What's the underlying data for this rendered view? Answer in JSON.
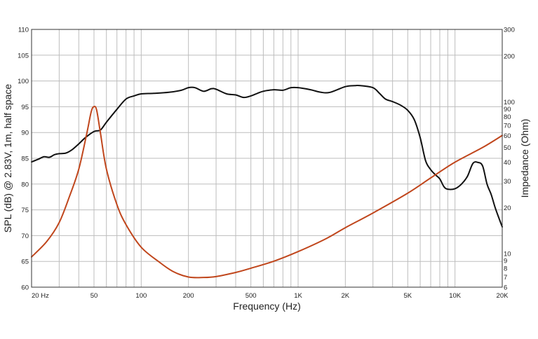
{
  "chart_data": {
    "type": "line",
    "title": "",
    "xlabel": "Frequency (Hz)",
    "ylabel": "SPL (dB) @ 2.83V, 1m, half space",
    "y2label": "Impedance (Ohm)",
    "x_scale": "log",
    "y2_scale": "log",
    "xlim": [
      20,
      20000
    ],
    "ylim": [
      60,
      110
    ],
    "y2lim": [
      6,
      300
    ],
    "grid": true,
    "x_ticks": [
      {
        "value": 20,
        "label": "20  Hz"
      },
      {
        "value": 50,
        "label": "50"
      },
      {
        "value": 100,
        "label": "100"
      },
      {
        "value": 200,
        "label": "200"
      },
      {
        "value": 500,
        "label": "500"
      },
      {
        "value": 1000,
        "label": "1K"
      },
      {
        "value": 2000,
        "label": "2K"
      },
      {
        "value": 5000,
        "label": "5K"
      },
      {
        "value": 10000,
        "label": "10K"
      },
      {
        "value": 20000,
        "label": "20K"
      }
    ],
    "y_ticks": [
      {
        "value": 60,
        "label": "60"
      },
      {
        "value": 65,
        "label": "65"
      },
      {
        "value": 70,
        "label": "70"
      },
      {
        "value": 75,
        "label": "75"
      },
      {
        "value": 80,
        "label": "80"
      },
      {
        "value": 85,
        "label": "85"
      },
      {
        "value": 90,
        "label": "90"
      },
      {
        "value": 95,
        "label": "95"
      },
      {
        "value": 100,
        "label": "100"
      },
      {
        "value": 105,
        "label": "105"
      },
      {
        "value": 110,
        "label": "110"
      }
    ],
    "y2_ticks": [
      {
        "value": 6,
        "label": "6"
      },
      {
        "value": 7,
        "label": "7"
      },
      {
        "value": 8,
        "label": "8"
      },
      {
        "value": 9,
        "label": "9"
      },
      {
        "value": 10,
        "label": "10"
      },
      {
        "value": 20,
        "label": "20"
      },
      {
        "value": 30,
        "label": "30"
      },
      {
        "value": 40,
        "label": "40"
      },
      {
        "value": 50,
        "label": "50"
      },
      {
        "value": 60,
        "label": "60"
      },
      {
        "value": 70,
        "label": "70"
      },
      {
        "value": 80,
        "label": "80"
      },
      {
        "value": 90,
        "label": "90"
      },
      {
        "value": 100,
        "label": "100"
      },
      {
        "value": 200,
        "label": "200"
      },
      {
        "value": 300,
        "label": "300"
      }
    ],
    "series": [
      {
        "axis": "left",
        "color": "#111111",
        "x": [
          20,
          22,
          24,
          26,
          28,
          30,
          33,
          36,
          40,
          44,
          50,
          55,
          60,
          70,
          80,
          90,
          100,
          120,
          150,
          180,
          200,
          220,
          250,
          280,
          300,
          350,
          400,
          450,
          500,
          550,
          600,
          700,
          800,
          900,
          1000,
          1200,
          1400,
          1600,
          2000,
          2300,
          2500,
          3000,
          3300,
          3600,
          4000,
          4500,
          5000,
          5500,
          6000,
          6500,
          7000,
          7500,
          8000,
          8500,
          9000,
          10000,
          11000,
          12000,
          13000,
          14000,
          15000,
          16000,
          17000,
          18000,
          19000,
          20000
        ],
        "y": [
          84.3,
          84.8,
          85.3,
          85.2,
          85.7,
          85.9,
          86.0,
          86.6,
          87.8,
          89.0,
          90.2,
          90.5,
          92.0,
          94.5,
          96.5,
          97.1,
          97.5,
          97.6,
          97.8,
          98.2,
          98.7,
          98.7,
          98.0,
          98.5,
          98.4,
          97.5,
          97.3,
          96.8,
          97.1,
          97.6,
          98.0,
          98.3,
          98.2,
          98.7,
          98.7,
          98.3,
          97.8,
          97.8,
          98.9,
          99.1,
          99.1,
          98.7,
          97.6,
          96.5,
          96.0,
          95.3,
          94.3,
          92.5,
          89.0,
          84.5,
          82.8,
          81.8,
          81.0,
          79.5,
          79.0,
          79.1,
          80.0,
          81.5,
          84.0,
          84.2,
          83.5,
          80.0,
          78.0,
          75.5,
          73.5,
          71.7
        ]
      },
      {
        "axis": "right",
        "color": "#c0461c",
        "x": [
          20,
          25,
          30,
          35,
          40,
          45,
          48,
          50,
          52,
          55,
          60,
          70,
          80,
          100,
          130,
          160,
          200,
          250,
          300,
          400,
          500,
          700,
          1000,
          1500,
          2000,
          3000,
          5000,
          7000,
          10000,
          15000,
          20000
        ],
        "y": [
          9.5,
          12,
          16,
          24,
          36,
          62,
          86,
          93,
          88,
          62,
          36,
          21,
          15.5,
          11,
          8.8,
          7.6,
          7.0,
          6.95,
          7.05,
          7.5,
          8.0,
          8.9,
          10.3,
          12.5,
          14.8,
          18.5,
          25,
          31.5,
          40,
          50,
          60
        ]
      }
    ]
  }
}
